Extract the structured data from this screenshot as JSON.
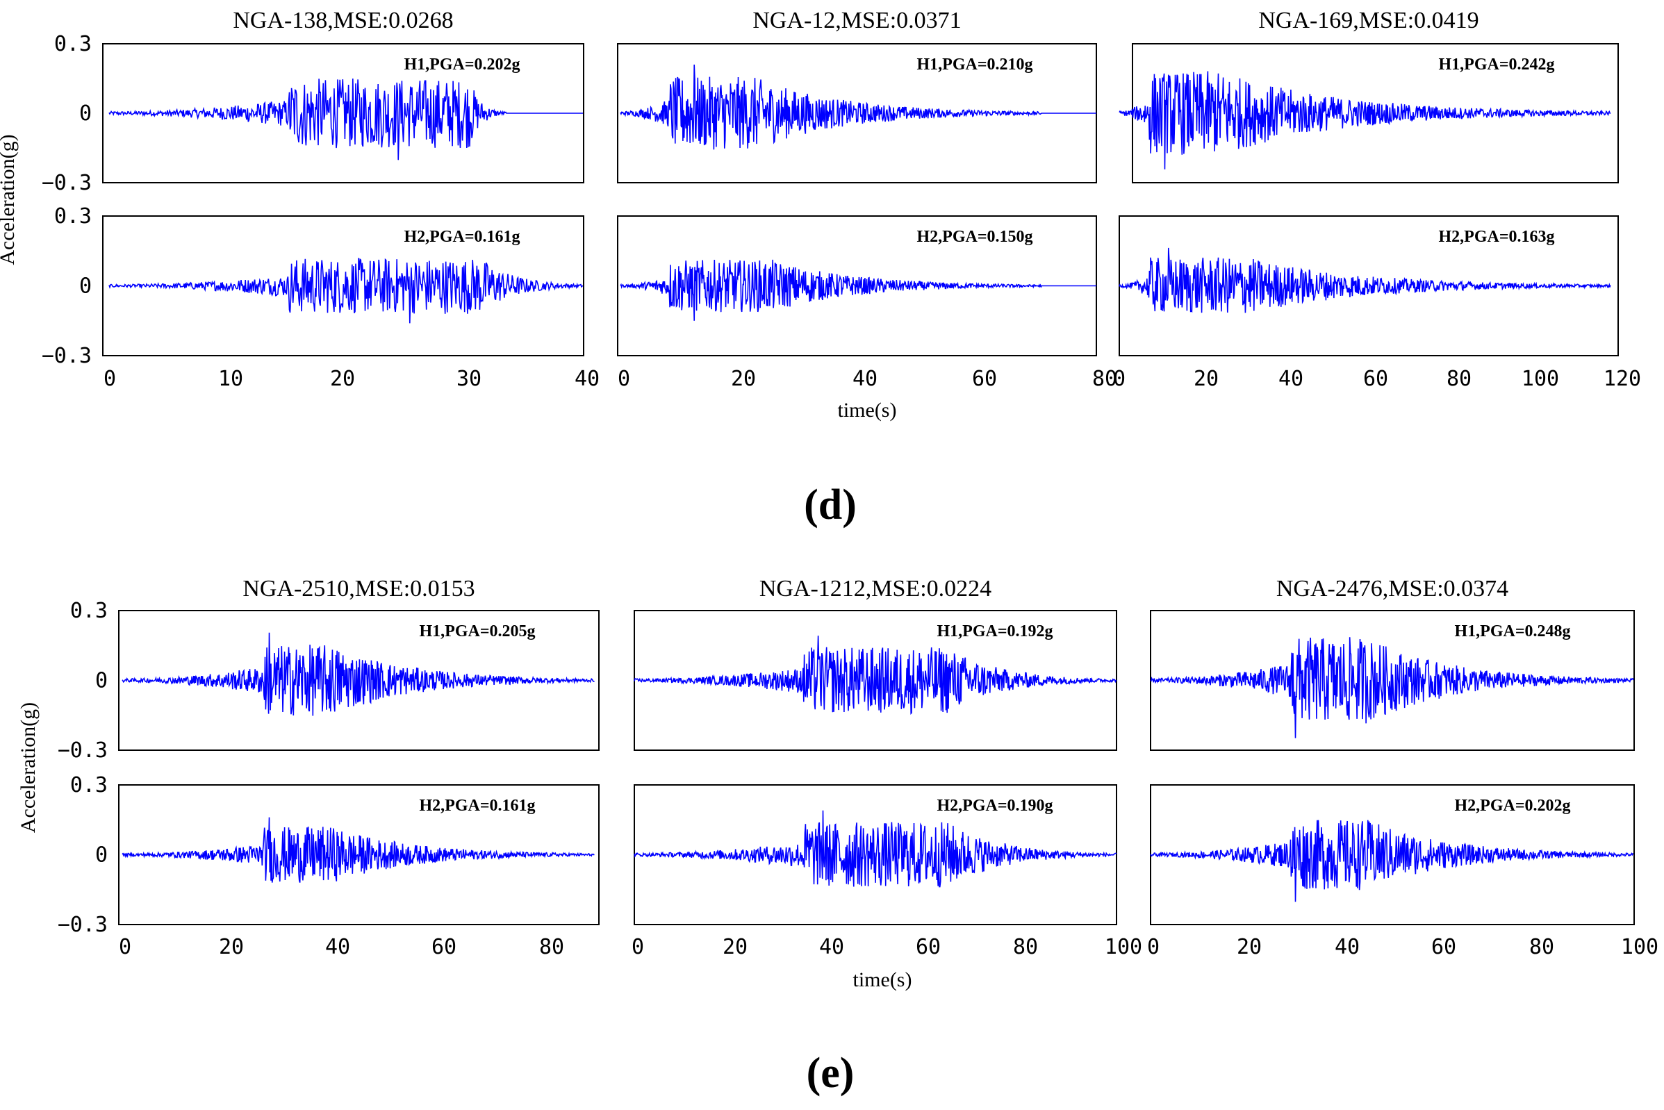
{
  "figure": {
    "xlabel": "time(s)",
    "ylabel": "Acceleration(g)",
    "y_ticks": [
      "0.3",
      "0",
      "−0.3"
    ],
    "line_color": "#0000ff",
    "groups": [
      {
        "panel_label": "(d)",
        "columns": [
          {
            "title": "NGA-138,MSE:0.0268",
            "x_ticks": [
              "0",
              "10",
              "20",
              "30",
              "40"
            ],
            "h1": "H1,PGA=0.202g",
            "h2": "H2,PGA=0.161g"
          },
          {
            "title": "NGA-12,MSE:0.0371",
            "x_ticks": [
              "0",
              "20",
              "40",
              "60",
              "80"
            ],
            "h1": "H1,PGA=0.210g",
            "h2": "H2,PGA=0.150g"
          },
          {
            "title": "NGA-169,MSE:0.0419",
            "x_ticks": [
              "0",
              "20",
              "40",
              "60",
              "80",
              "100",
              "120"
            ],
            "h1": "H1,PGA=0.242g",
            "h2": "H2,PGA=0.163g"
          }
        ]
      },
      {
        "panel_label": "(e)",
        "columns": [
          {
            "title": "NGA-2510,MSE:0.0153",
            "x_ticks": [
              "0",
              "20",
              "40",
              "60",
              "80"
            ],
            "h1": "H1,PGA=0.205g",
            "h2": "H2,PGA=0.161g"
          },
          {
            "title": "NGA-1212,MSE:0.0224",
            "x_ticks": [
              "0",
              "20",
              "40",
              "60",
              "80",
              "100"
            ],
            "h1": "H1,PGA=0.192g",
            "h2": "H2,PGA=0.190g"
          },
          {
            "title": "NGA-2476,MSE:0.0374",
            "x_ticks": [
              "0",
              "20",
              "40",
              "60",
              "80",
              "100"
            ],
            "h1": "H1,PGA=0.248g",
            "h2": "H2,PGA=0.202g"
          }
        ]
      }
    ]
  },
  "chart_data": [
    {
      "type": "line",
      "title": "NGA-138,MSE:0.0268",
      "component": "H1",
      "xlim": [
        0,
        40
      ],
      "ylim": [
        -0.3,
        0.3
      ],
      "pga_g": 0.202,
      "duration_s": 33,
      "strong_motion_s": [
        15,
        30
      ],
      "peak_time_s": 24
    },
    {
      "type": "line",
      "title": "NGA-138,MSE:0.0268",
      "component": "H2",
      "xlim": [
        0,
        40
      ],
      "ylim": [
        -0.3,
        0.3
      ],
      "pga_g": 0.161,
      "duration_s": 40,
      "strong_motion_s": [
        15,
        31
      ],
      "peak_time_s": 25
    },
    {
      "type": "line",
      "title": "NGA-12,MSE:0.0371",
      "component": "H1",
      "xlim": [
        0,
        80
      ],
      "ylim": [
        -0.3,
        0.3
      ],
      "pga_g": 0.21,
      "duration_s": 69,
      "strong_motion_s": [
        8,
        22
      ],
      "peak_time_s": 12
    },
    {
      "type": "line",
      "title": "NGA-12,MSE:0.0371",
      "component": "H2",
      "xlim": [
        0,
        80
      ],
      "ylim": [
        -0.3,
        0.3
      ],
      "pga_g": 0.15,
      "duration_s": 69,
      "strong_motion_s": [
        8,
        25
      ],
      "peak_time_s": 12
    },
    {
      "type": "line",
      "title": "NGA-169,MSE:0.0419",
      "component": "H1",
      "xlim": [
        0,
        120
      ],
      "ylim": [
        -0.3,
        0.3
      ],
      "pga_g": 0.242,
      "duration_s": 120,
      "strong_motion_s": [
        7,
        25
      ],
      "peak_time_s": 11
    },
    {
      "type": "line",
      "title": "NGA-169,MSE:0.0419",
      "component": "H2",
      "xlim": [
        0,
        120
      ],
      "ylim": [
        -0.3,
        0.3
      ],
      "pga_g": 0.163,
      "duration_s": 120,
      "strong_motion_s": [
        7,
        32
      ],
      "peak_time_s": 12
    },
    {
      "type": "line",
      "title": "NGA-2510,MSE:0.0153",
      "component": "H1",
      "xlim": [
        0,
        90
      ],
      "ylim": [
        -0.3,
        0.3
      ],
      "pga_g": 0.205,
      "duration_s": 90,
      "strong_motion_s": [
        27,
        40
      ],
      "peak_time_s": 28
    },
    {
      "type": "line",
      "title": "NGA-2510,MSE:0.0153",
      "component": "H2",
      "xlim": [
        0,
        90
      ],
      "ylim": [
        -0.3,
        0.3
      ],
      "pga_g": 0.161,
      "duration_s": 90,
      "strong_motion_s": [
        27,
        40
      ],
      "peak_time_s": 28
    },
    {
      "type": "line",
      "title": "NGA-1212,MSE:0.0224",
      "component": "H1",
      "xlim": [
        0,
        100
      ],
      "ylim": [
        -0.3,
        0.3
      ],
      "pga_g": 0.192,
      "duration_s": 100,
      "strong_motion_s": [
        35,
        65
      ],
      "peak_time_s": 38
    },
    {
      "type": "line",
      "title": "NGA-1212,MSE:0.0224",
      "component": "H2",
      "xlim": [
        0,
        100
      ],
      "ylim": [
        -0.3,
        0.3
      ],
      "pga_g": 0.19,
      "duration_s": 100,
      "strong_motion_s": [
        35,
        65
      ],
      "peak_time_s": 39
    },
    {
      "type": "line",
      "title": "NGA-2476,MSE:0.0374",
      "component": "H1",
      "xlim": [
        0,
        100
      ],
      "ylim": [
        -0.3,
        0.3
      ],
      "pga_g": 0.248,
      "duration_s": 100,
      "strong_motion_s": [
        29,
        45
      ],
      "peak_time_s": 30
    },
    {
      "type": "line",
      "title": "NGA-2476,MSE:0.0374",
      "component": "H2",
      "xlim": [
        0,
        100
      ],
      "ylim": [
        -0.3,
        0.3
      ],
      "pga_g": 0.202,
      "duration_s": 100,
      "strong_motion_s": [
        29,
        45
      ],
      "peak_time_s": 30
    }
  ]
}
